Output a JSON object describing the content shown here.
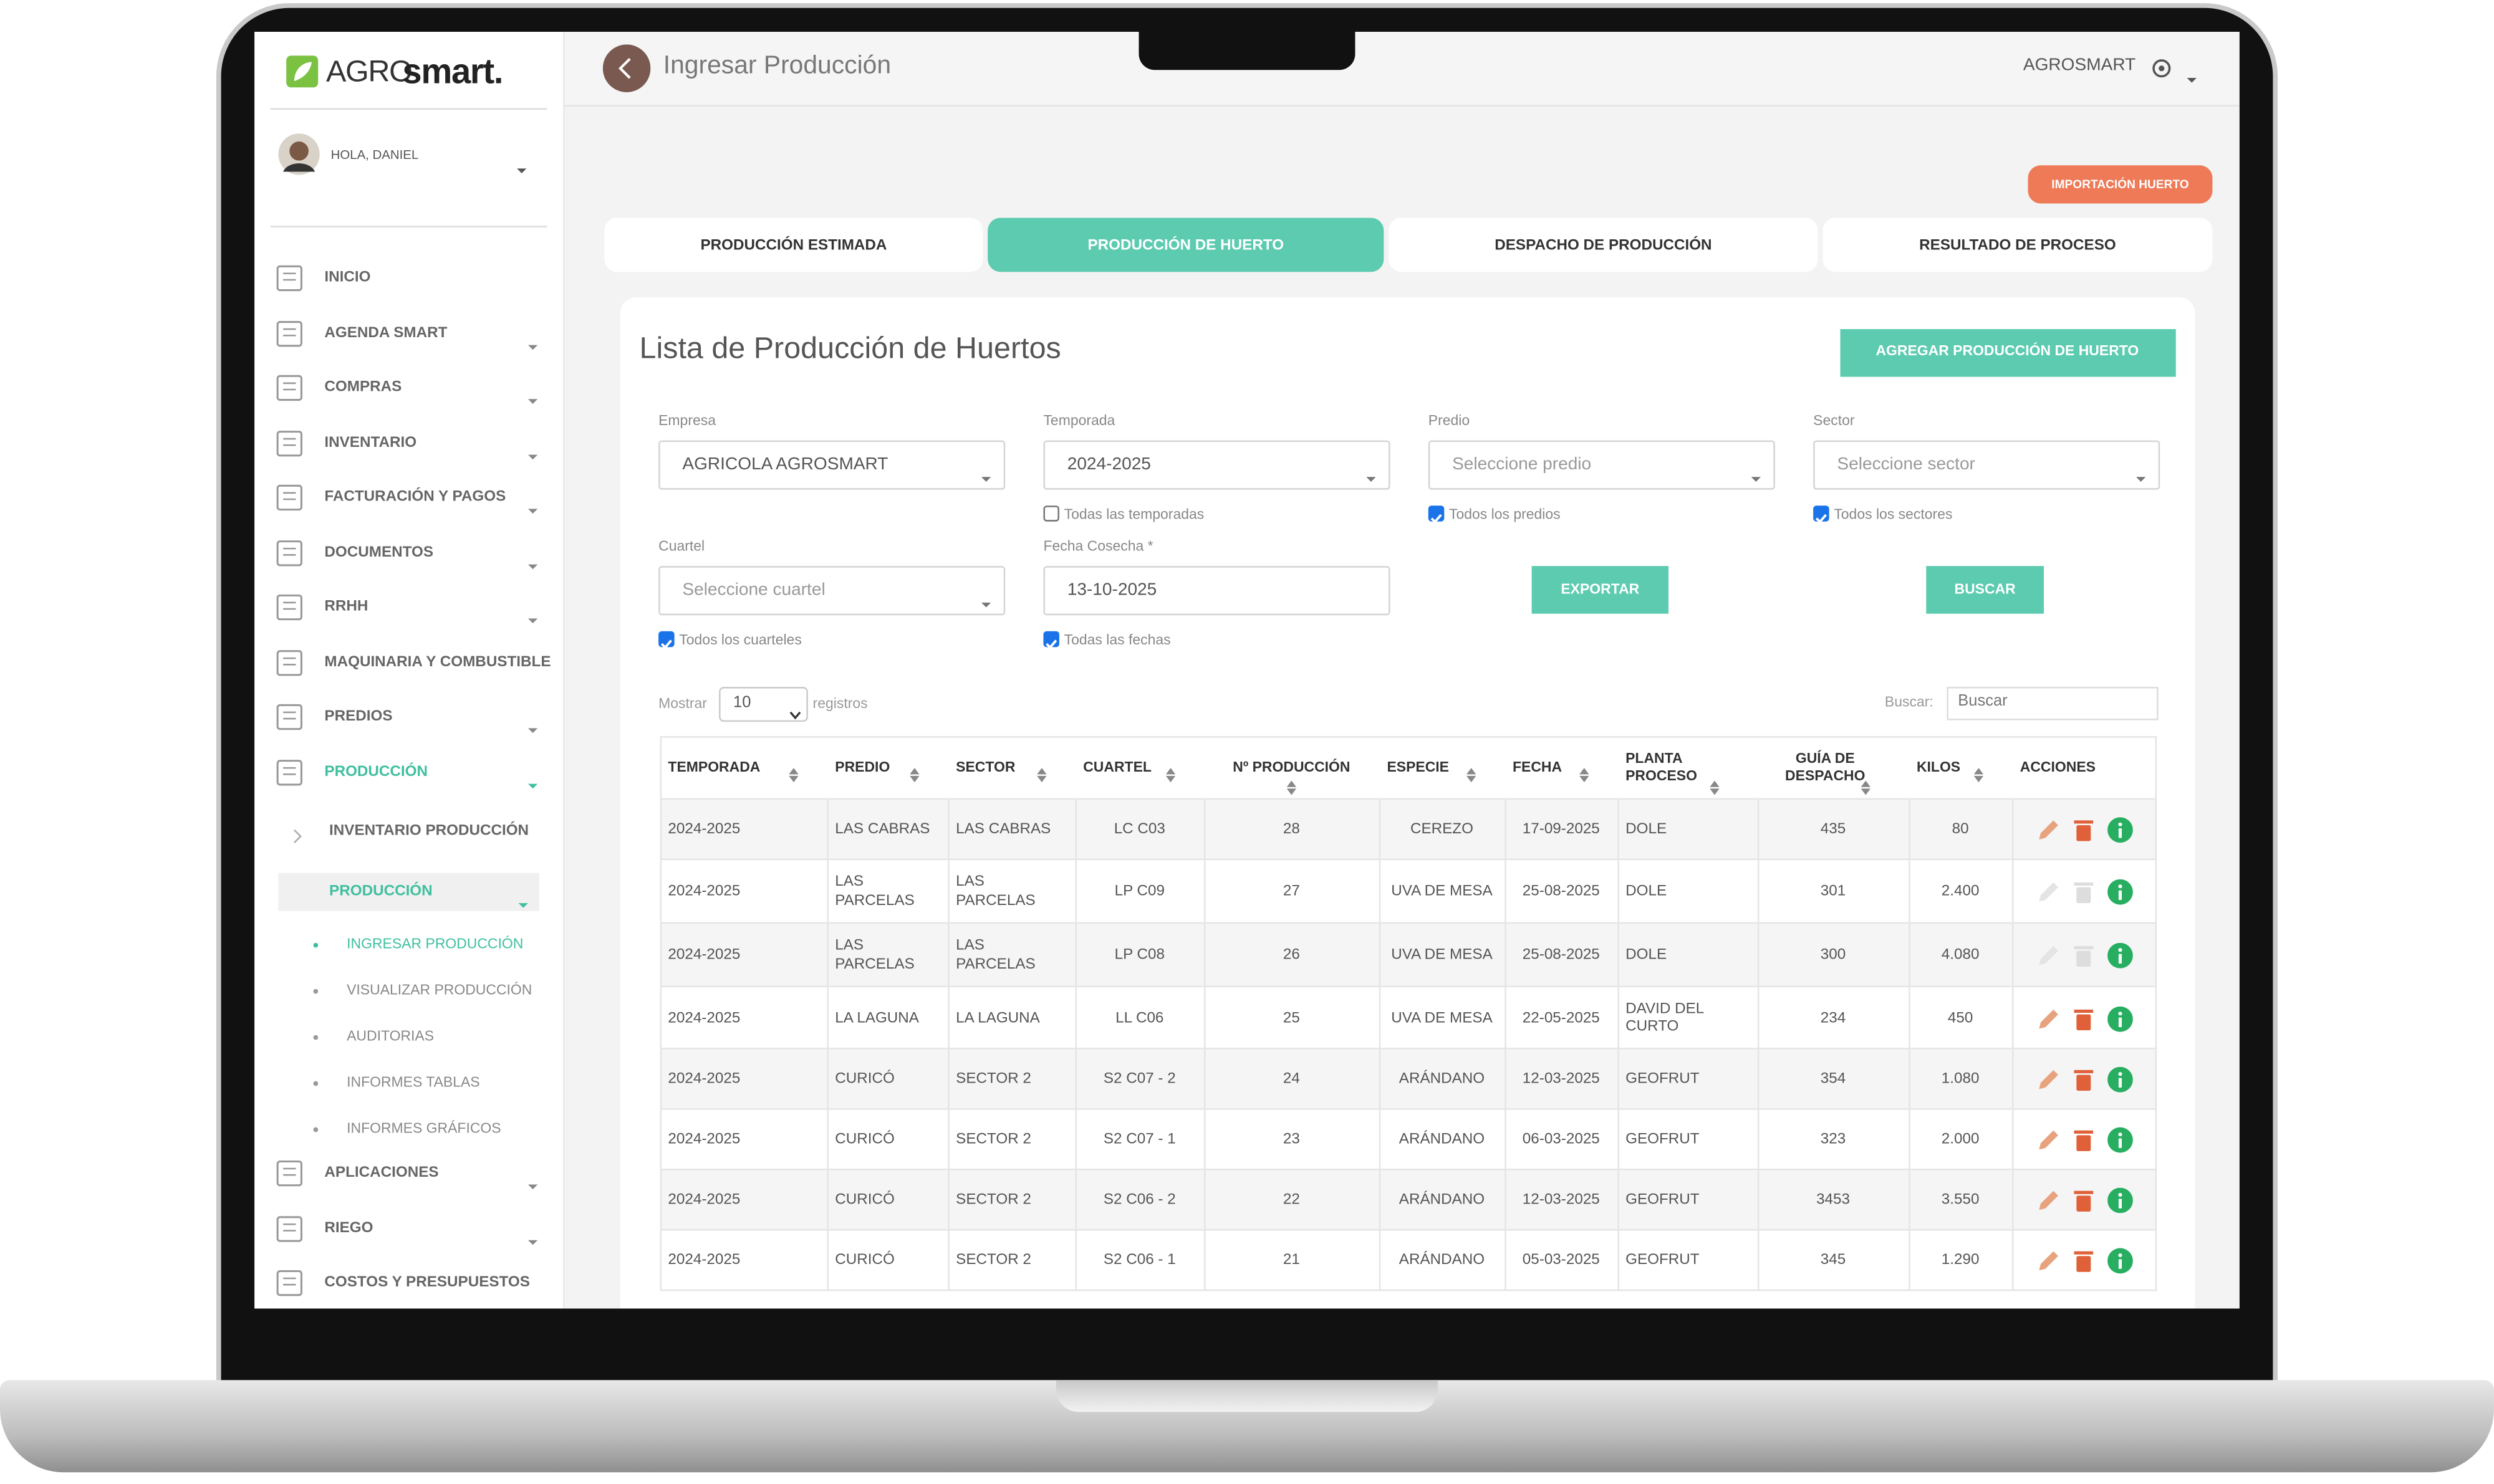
{
  "logo": {
    "prefix": "AGRO",
    "suffix": "smart."
  },
  "user": {
    "greeting": "HOLA, DANIEL"
  },
  "sidebar": {
    "menu": [
      "INICIO",
      "AGENDA SMART",
      "COMPRAS",
      "INVENTARIO",
      "FACTURACIÓN Y PAGOS",
      "DOCUMENTOS",
      "RRHH",
      "MAQUINARIA Y COMBUSTIBLE",
      "PREDIOS",
      "PRODUCCIÓN"
    ],
    "submenu": [
      "INVENTARIO PRODUCCIÓN",
      "PRODUCCIÓN"
    ],
    "pages": [
      "INGRESAR PRODUCCIÓN",
      "VISUALIZAR PRODUCCIÓN",
      "AUDITORIAS",
      "INFORMES TABLAS",
      "INFORMES GRÁFICOS"
    ],
    "menu_after": [
      "APLICACIONES",
      "RIEGO",
      "COSTOS Y PRESUPUESTOS"
    ]
  },
  "header": {
    "title": "Ingresar Producción",
    "company": "AGROSMART"
  },
  "actions": {
    "import": "IMPORTACIÓN HUERTO"
  },
  "tabs": [
    "PRODUCCIÓN ESTIMADA",
    "PRODUCCIÓN DE HUERTO",
    "DESPACHO DE PRODUCCIÓN",
    "RESULTADO DE PROCESO"
  ],
  "card": {
    "title": "Lista de Producción de Huertos",
    "add_button": "AGREGAR PRODUCCIÓN DE HUERTO"
  },
  "filters": [
    {
      "label": "Empresa",
      "value": "AGRICOLA AGROSMART"
    },
    {
      "label": "Temporada",
      "value": "2024-2025",
      "check": {
        "label": "Todas las temporadas",
        "checked": false
      }
    },
    {
      "label": "Predio",
      "placeholder": "Seleccione predio",
      "check": {
        "label": "Todos los predios",
        "checked": true
      }
    },
    {
      "label": "Sector",
      "placeholder": "Seleccione sector",
      "check": {
        "label": "Todos los sectores",
        "checked": true
      }
    },
    {
      "label": "Cuartel",
      "placeholder": "Seleccione cuartel",
      "check": {
        "label": "Todos los cuarteles",
        "checked": true
      }
    },
    {
      "label": "Fecha Cosecha *",
      "value": "13-10-2025",
      "check": {
        "label": "Todas las fechas",
        "checked": true
      }
    }
  ],
  "buttons": {
    "export": "EXPORTAR",
    "search": "BUSCAR"
  },
  "table_controls": {
    "show": "Mostrar",
    "page_size": "10",
    "records": "registros",
    "search_label": "Buscar:",
    "search_placeholder": "Buscar"
  },
  "table": {
    "columns": [
      "TEMPORADA",
      "PREDIO",
      "SECTOR",
      "CUARTEL",
      "Nº PRODUCCIÓN",
      "ESPECIE",
      "FECHA",
      "PLANTA PROCESO",
      "GUÍA DE DESPACHO",
      "KILOS",
      "ACCIONES"
    ],
    "rows": [
      [
        "2024-2025",
        "LAS CABRAS",
        "LAS CABRAS",
        "LC C03",
        "28",
        "CEREZO",
        "17-09-2025",
        "DOLE",
        "435",
        "80"
      ],
      [
        "2024-2025",
        "LAS PARCELAS",
        "LAS PARCELAS",
        "LP C09",
        "27",
        "UVA DE MESA",
        "25-08-2025",
        "DOLE",
        "301",
        "2.400"
      ],
      [
        "2024-2025",
        "LAS PARCELAS",
        "LAS PARCELAS",
        "LP C08",
        "26",
        "UVA DE MESA",
        "25-08-2025",
        "DOLE",
        "300",
        "4.080"
      ],
      [
        "2024-2025",
        "LA LAGUNA",
        "LA LAGUNA",
        "LL C06",
        "25",
        "UVA DE MESA",
        "22-05-2025",
        "DAVID DEL CURTO",
        "234",
        "450"
      ],
      [
        "2024-2025",
        "CURICÓ",
        "SECTOR 2",
        "S2 C07 - 2",
        "24",
        "ARÁNDANO",
        "12-03-2025",
        "GEOFRUT",
        "354",
        "1.080"
      ],
      [
        "2024-2025",
        "CURICÓ",
        "SECTOR 2",
        "S2 C07 - 1",
        "23",
        "ARÁNDANO",
        "06-03-2025",
        "GEOFRUT",
        "323",
        "2.000"
      ],
      [
        "2024-2025",
        "CURICÓ",
        "SECTOR 2",
        "S2 C06 - 2",
        "22",
        "ARÁNDANO",
        "12-03-2025",
        "GEOFRUT",
        "3453",
        "3.550"
      ],
      [
        "2024-2025",
        "CURICÓ",
        "SECTOR 2",
        "S2 C06 - 1",
        "21",
        "ARÁNDANO",
        "05-03-2025",
        "GEOFRUT",
        "345",
        "1.290"
      ]
    ]
  }
}
